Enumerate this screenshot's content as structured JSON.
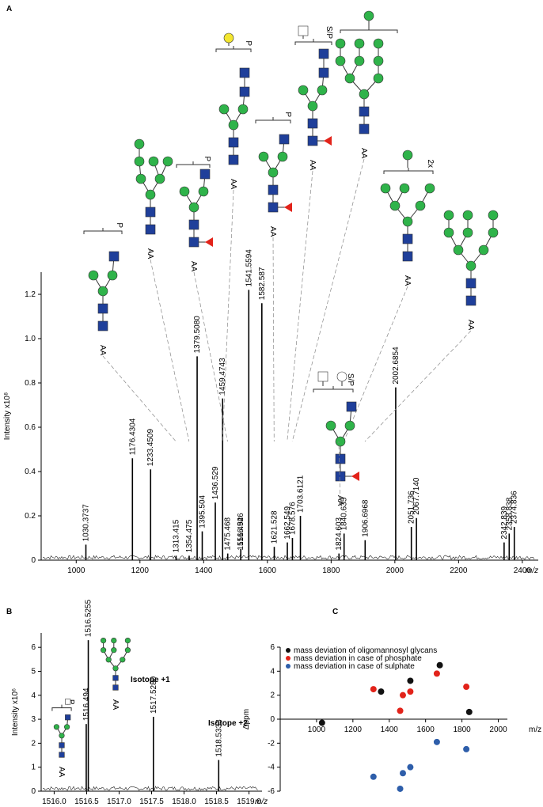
{
  "chart_data": [
    {
      "type": "stem",
      "panel_label": "A",
      "y_label": "Intensity x10⁸",
      "x_label": "m/z",
      "x": [
        1030.3737,
        1176.4304,
        1233.4509,
        1313.415,
        1354.475,
        1379.508,
        1395.504,
        1436.529,
        1459.4743,
        1475.468,
        1516.494,
        1516.526,
        1541.5594,
        1582.587,
        1621.528,
        1662.549,
        1678.576,
        1703.6121,
        1824.603,
        1840.635,
        1906.6968,
        2002.6854,
        2051.736,
        2067.714,
        2342.839,
        2358.838,
        2374.836
      ],
      "x_labels": [
        "1030.3737",
        "1176.4304",
        "1233.4509",
        "1313.415",
        "1354.475",
        "1379.5080",
        "1395.504",
        "1436.529",
        "1459.4743",
        "1475.468",
        "1516.494",
        "1516.526",
        "1541.5594",
        "1582.587",
        "1621.528",
        "1662.549",
        "1678.576",
        "1703.6121",
        "1824.603",
        "1840.635",
        "1906.6968",
        "2002.6854",
        "2051.736",
        "2067.7140",
        "2342.839",
        "2358.838",
        "2374.836"
      ],
      "values": [
        0.07,
        0.46,
        0.41,
        0.02,
        0.02,
        0.92,
        0.13,
        0.26,
        0.73,
        0.03,
        0.03,
        0.05,
        1.22,
        1.16,
        0.06,
        0.08,
        0.1,
        0.2,
        0.03,
        0.12,
        0.09,
        0.78,
        0.15,
        0.19,
        0.08,
        0.12,
        0.15
      ],
      "label_colors": [
        "#000",
        "#000",
        "#000",
        "#e2231a",
        "#000",
        "#000",
        "#000",
        "#000",
        "#e2231a",
        "#e2231a",
        "#e2231a",
        "#000",
        "#000",
        "#000",
        "#e2231a",
        "#e2231a",
        "#000",
        "#000",
        "#e2231a",
        "#000",
        "#000",
        "#000",
        "#000",
        "#000",
        "#000",
        "#000",
        "#000"
      ],
      "color": "#000",
      "xlim": [
        890,
        2450
      ],
      "xticks": [
        1000,
        1200,
        1400,
        1600,
        1800,
        2000,
        2200,
        2400
      ],
      "ylim": [
        0,
        1.3
      ],
      "yticks": [
        0,
        0.2,
        0.4,
        0.6,
        0.8,
        {
          "value": 1,
          "label": "1.0"
        },
        1.2
      ],
      "glycans": [
        {
          "label": "P",
          "end": "AA"
        },
        {
          "end": "AA"
        },
        {
          "label": "P",
          "end": "AA"
        },
        {
          "label": "P",
          "end": "AA"
        },
        {
          "label": "P",
          "end": "AA"
        },
        {
          "label": "S/P",
          "end": "AA"
        },
        {
          "end": "AA"
        },
        {
          "label": "2x",
          "end": "AA"
        },
        {
          "end": "AA"
        },
        {
          "label": "S/P",
          "end": "AA"
        }
      ]
    },
    {
      "type": "stem",
      "panel_label": "B",
      "y_label": "Intensity x10⁶",
      "x_label": "m/z",
      "x": [
        1516.494,
        1516.5255,
        1517.528,
        1518.5333
      ],
      "x_labels": [
        "1516.494",
        "1516.5255",
        "1517.5280",
        "1518.5333"
      ],
      "values": [
        2.8,
        6.3,
        3.1,
        1.3
      ],
      "label_colors": [
        "#000",
        "#000",
        "#000",
        "#000"
      ],
      "annotations": [
        "Isotope +1",
        "Isotope +2"
      ],
      "color": "#000",
      "xlim": [
        1515.8,
        1519.2
      ],
      "xticks": [
        {
          "value": 1516,
          "label": "1516.0"
        },
        1516.5,
        {
          "value": 1517,
          "label": "1517.0"
        },
        1517.5,
        {
          "value": 1518,
          "label": "1518.0"
        },
        1518.5,
        {
          "value": 1519,
          "label": "1519.0"
        }
      ],
      "ylim": [
        0,
        6.6
      ],
      "yticks": [
        0,
        1,
        2,
        3,
        4,
        5,
        6
      ],
      "glycans": [
        {
          "label": "P",
          "end": "AA"
        },
        {
          "end": "AA"
        }
      ]
    },
    {
      "type": "scatter",
      "panel_label": "C",
      "y_label": "Δppm",
      "x_label": "m/z",
      "xlim": [
        800,
        2050
      ],
      "xticks": [
        1000,
        1200,
        1400,
        1600,
        1800,
        2000
      ],
      "ylim": [
        -6,
        6
      ],
      "yticks": [
        -6,
        -4,
        -2,
        0,
        2,
        4,
        6
      ],
      "series": [
        {
          "name": "mass deviation of oligomannosyl glycans",
          "color": "#111111",
          "x": [
            1030,
            1355,
            1516,
            1678,
            1840
          ],
          "values": [
            -0.3,
            2.3,
            3.2,
            4.5,
            0.6
          ]
        },
        {
          "name": "mass deviation in case of phosphate",
          "color": "#e2231a",
          "x": [
            1313,
            1460,
            1475,
            1516,
            1662,
            1824
          ],
          "values": [
            2.5,
            0.7,
            2.0,
            2.3,
            3.8,
            2.7
          ]
        },
        {
          "name": "mass deviation in case of sulphate",
          "color": "#2e5eaa",
          "x": [
            1313,
            1460,
            1475,
            1516,
            1662,
            1824
          ],
          "values": [
            -4.8,
            -5.8,
            -4.5,
            -4.0,
            -1.9,
            -2.5
          ]
        }
      ]
    }
  ]
}
